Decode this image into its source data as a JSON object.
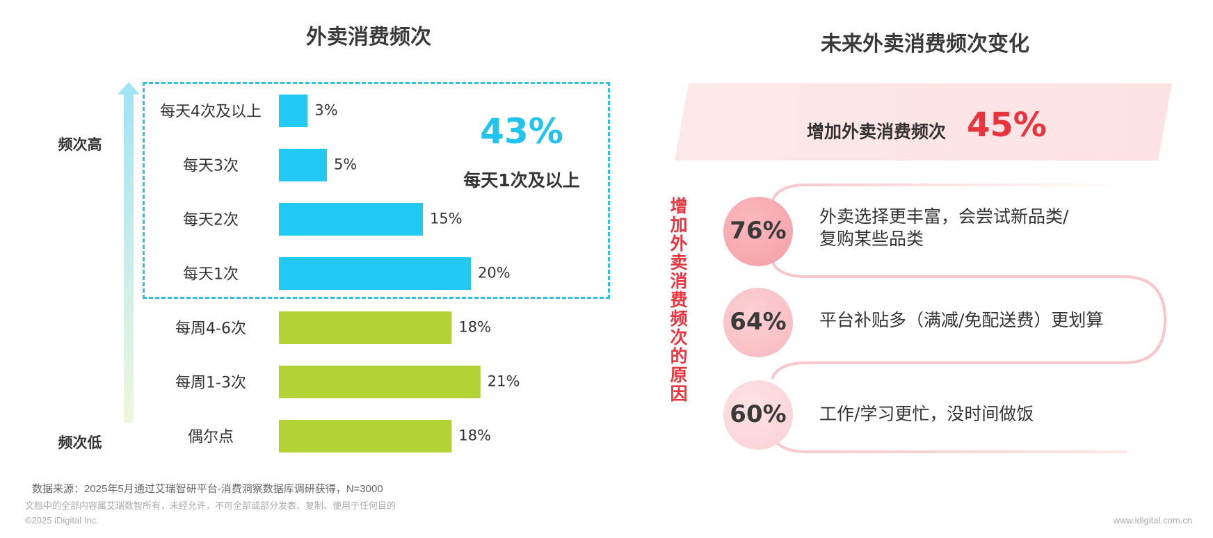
{
  "left_title": "外卖消费频次",
  "right_title": "未来外卖消费频次变化",
  "freq_high": "频次高",
  "freq_low": "频次低",
  "highlight": {
    "value": "43%",
    "label": "每天1次及以上"
  },
  "colors": {
    "daily_bar": "#22c9f2",
    "weekly_bar": "#b2d235",
    "highlight": "#22c4ef",
    "accent_red": "#e8343f"
  },
  "chart_data": {
    "type": "bar",
    "orientation": "horizontal",
    "categories": [
      "每天4次及以上",
      "每天3次",
      "每天2次",
      "每天1次",
      "每周4-6次",
      "每周1-3次",
      "偶尔点"
    ],
    "values": [
      3,
      5,
      15,
      20,
      18,
      21,
      18
    ],
    "value_labels": [
      "3%",
      "5%",
      "15%",
      "20%",
      "18%",
      "21%",
      "18%"
    ],
    "bar_colors": [
      "#22c9f2",
      "#22c9f2",
      "#22c9f2",
      "#22c9f2",
      "#b2d235",
      "#b2d235",
      "#b2d235"
    ],
    "title": "外卖消费频次",
    "xlim": [
      0,
      25
    ],
    "grid": false
  },
  "banner": {
    "text": "增加外卖消费频次",
    "value": "45%"
  },
  "reasons_label": "增加外卖消费频次的原因",
  "reasons": [
    {
      "pct": "76%",
      "line1": "外卖选择更丰富，会尝试新品类/",
      "line2": "复购某些品类"
    },
    {
      "pct": "64%",
      "line1": "平台补贴多（满减/免配送费）更划算",
      "line2": ""
    },
    {
      "pct": "60%",
      "line1": "工作/学习更忙，没时间做饭",
      "line2": ""
    }
  ],
  "footer": {
    "source": "数据来源：2025年5月通过艾瑞智研平台-消费洞察数据库调研获得，N=3000",
    "rights": "文档中的全部内容属艾瑞数智所有，未经允许，不可全部或部分发表、复制、使用于任何目的",
    "copyright": "©2025 iDigital Inc.",
    "website": "www.idigital.com.cn"
  }
}
